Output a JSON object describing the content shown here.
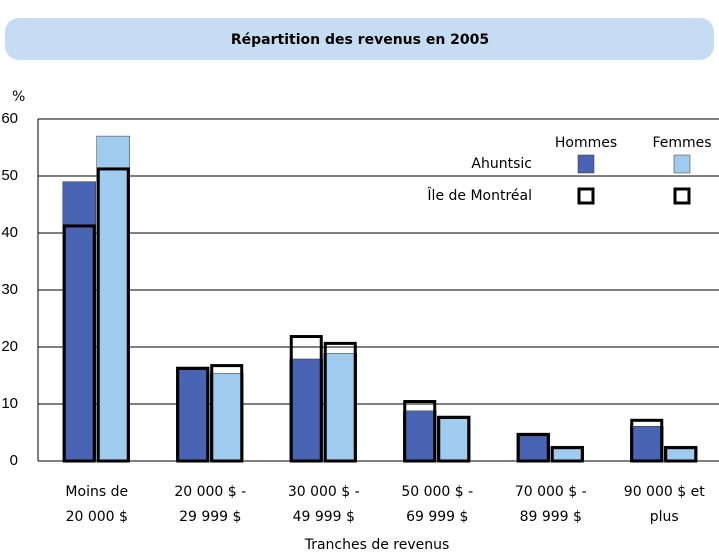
{
  "chart_data": {
    "type": "bar",
    "title": "Répartition des revenus en 2005",
    "y_label": "%",
    "x_label": "Tranches de revenus",
    "categories": [
      [
        "Moins de",
        "20 000 $"
      ],
      [
        "20 000 $ -",
        "29 999 $"
      ],
      [
        "30 000 $ -",
        "49 999 $"
      ],
      [
        "50 000 $ -",
        "69 999 $"
      ],
      [
        "70 000 $ -",
        "89 999 $"
      ],
      [
        "90 000 $ et",
        "plus"
      ]
    ],
    "series": [
      {
        "name": "Ahuntsic",
        "style": "fill",
        "groups": [
          {
            "name": "Hommes",
            "color": "#4a64b4",
            "values": [
              49,
              16.5,
              17.9,
              8.8,
              4.9,
              6.1
            ]
          },
          {
            "name": "Femmes",
            "color": "#9fcbee",
            "values": [
              57,
              15.4,
              18.9,
              7.9,
              2.6,
              2.6
            ]
          }
        ]
      },
      {
        "name": "Île de Montréal",
        "style": "outline",
        "color": "#000000",
        "groups": [
          {
            "values": [
              41.5,
              16.5,
              22.1,
              10.7,
              4.9,
              7.4
            ]
          },
          {
            "values": [
              51.5,
              17,
              20.9,
              7.9,
              2.6,
              2.6
            ]
          }
        ]
      }
    ],
    "ylim": [
      0,
      60
    ],
    "yticks": [
      0,
      10,
      20,
      30,
      40,
      50,
      60
    ],
    "grid": true
  }
}
